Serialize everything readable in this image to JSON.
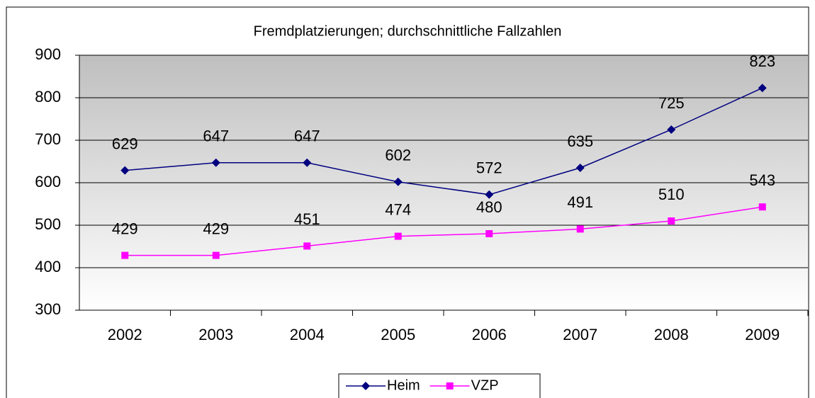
{
  "chart_data": {
    "type": "line",
    "title": "Fremdplatzierungen; durchschnittliche Fallzahlen",
    "categories": [
      "2002",
      "2003",
      "2004",
      "2005",
      "2006",
      "2007",
      "2008",
      "2009"
    ],
    "series": [
      {
        "name": "Heim",
        "color": "#000080",
        "marker": "diamond",
        "values": [
          629,
          647,
          647,
          602,
          572,
          635,
          725,
          823
        ]
      },
      {
        "name": "VZP",
        "color": "#ff00ff",
        "marker": "square",
        "values": [
          429,
          429,
          451,
          474,
          480,
          491,
          510,
          543
        ]
      }
    ],
    "ylim": [
      300,
      900
    ],
    "yticks": [
      300,
      400,
      500,
      600,
      700,
      800,
      900
    ],
    "grid": true,
    "legend": "bottom"
  }
}
